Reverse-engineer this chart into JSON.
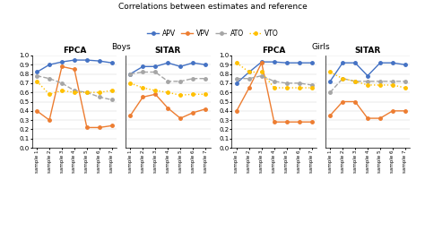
{
  "title": "Correlations between estimates and reference",
  "legend_labels": [
    "APV",
    "VPV",
    "ATO",
    "VTO"
  ],
  "colors": {
    "APV": "#4472C4",
    "VPV": "#ED7D31",
    "ATO": "#A5A5A5",
    "VTO": "#FFC000"
  },
  "x_labels": [
    "sample 1",
    "sample 2",
    "sample 3",
    "sample 4",
    "sample 5",
    "sample 6",
    "sample 7"
  ],
  "boys_fpca": {
    "APV": [
      0.82,
      0.9,
      0.93,
      0.95,
      0.95,
      0.94,
      0.92
    ],
    "VPV": [
      0.4,
      0.3,
      0.88,
      0.85,
      0.22,
      0.22,
      0.24
    ],
    "ATO": [
      0.78,
      0.75,
      0.7,
      0.62,
      0.6,
      0.55,
      0.52
    ],
    "VTO": [
      0.72,
      0.58,
      0.62,
      0.6,
      0.6,
      0.6,
      0.62
    ]
  },
  "boys_sitar": {
    "APV": [
      0.8,
      0.88,
      0.88,
      0.92,
      0.88,
      0.92,
      0.9
    ],
    "VPV": [
      0.35,
      0.55,
      0.58,
      0.43,
      0.32,
      0.38,
      0.42
    ],
    "ATO": [
      0.8,
      0.82,
      0.82,
      0.72,
      0.72,
      0.75,
      0.75
    ],
    "VTO": [
      0.7,
      0.65,
      0.62,
      0.6,
      0.57,
      0.58,
      0.58
    ]
  },
  "girls_fpca": {
    "APV": [
      0.7,
      0.82,
      0.93,
      0.93,
      0.92,
      0.92,
      0.92
    ],
    "VPV": [
      0.4,
      0.65,
      0.92,
      0.28,
      0.28,
      0.28,
      0.28
    ],
    "ATO": [
      0.75,
      0.75,
      0.78,
      0.72,
      0.7,
      0.7,
      0.68
    ],
    "VTO": [
      0.92,
      0.82,
      0.82,
      0.65,
      0.65,
      0.65,
      0.65
    ]
  },
  "girls_sitar": {
    "APV": [
      0.72,
      0.92,
      0.92,
      0.78,
      0.92,
      0.92,
      0.9
    ],
    "VPV": [
      0.35,
      0.5,
      0.5,
      0.32,
      0.32,
      0.4,
      0.4
    ],
    "ATO": [
      0.6,
      0.75,
      0.72,
      0.72,
      0.72,
      0.72,
      0.72
    ],
    "VTO": [
      0.82,
      0.75,
      0.72,
      0.68,
      0.68,
      0.68,
      0.65
    ]
  },
  "ylim": [
    0.0,
    1.0
  ],
  "yticks": [
    0.0,
    0.1,
    0.2,
    0.3,
    0.4,
    0.5,
    0.6,
    0.7,
    0.8,
    0.9,
    1.0
  ],
  "section_labels": [
    "Boys",
    "Girls"
  ],
  "subplot_labels": [
    "FPCA",
    "SITAR",
    "FPCA",
    "SITAR"
  ],
  "background_color": "#ffffff",
  "line_styles": {
    "APV": "-",
    "VPV": "-",
    "ATO": "--",
    "VTO": ":"
  },
  "markers": {
    "APV": "o",
    "VPV": "o",
    "ATO": "o",
    "VTO": "o"
  },
  "markersize": 2.5,
  "linewidth": 1.0
}
